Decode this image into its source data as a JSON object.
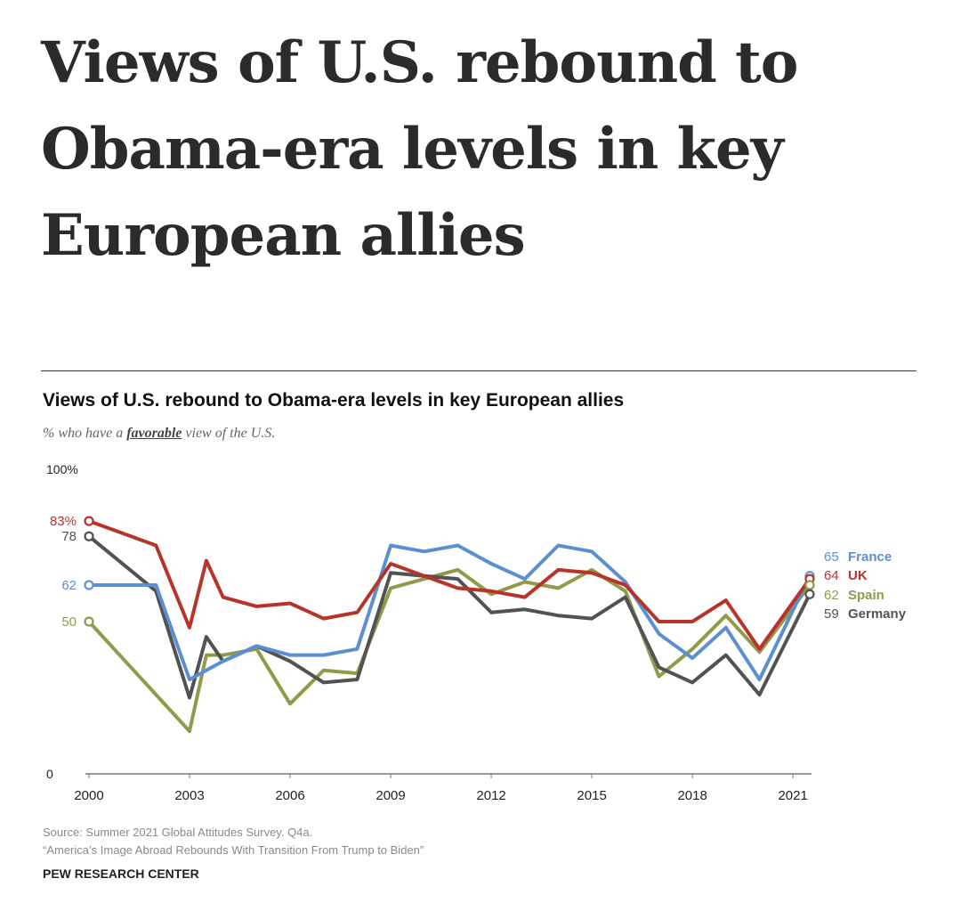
{
  "headline": "Views of U.S. rebound to Obama-era levels in key European allies",
  "chart_title": "Views of U.S. rebound to Obama-era levels in key European allies",
  "subtitle_before": "% who have a ",
  "subtitle_emphasis": "favorable",
  "subtitle_after": " view of the U.S.",
  "source_line_1": "Source: Summer 2021 Global Attitudes Survey. Q4a.",
  "source_line_2": "“America’s Image Abroad Rebounds With Transition From Trump to Biden”",
  "organization": "PEW RESEARCH CENTER",
  "chart_data": {
    "type": "line",
    "title": "Views of U.S. rebound to Obama-era levels in key European allies",
    "subtitle": "% who have a favorable view of the U.S.",
    "xlabel": "",
    "ylabel": "",
    "xlim": [
      2000,
      2021.5
    ],
    "ylim": [
      0,
      100
    ],
    "x_ticks": [
      2000,
      2003,
      2006,
      2009,
      2012,
      2015,
      2018,
      2021
    ],
    "y_tick_labels": [
      {
        "value": 100,
        "label": "100%"
      },
      {
        "value": 0,
        "label": "0"
      }
    ],
    "grid": false,
    "legend": "labels at right end of each line",
    "series": [
      {
        "name": "France",
        "color": "#5b8fd4",
        "start_label": "62",
        "end_label": "65",
        "points": [
          [
            2000,
            62
          ],
          [
            2002,
            62
          ],
          [
            2003,
            31
          ],
          [
            2004,
            37
          ],
          [
            2005,
            42
          ],
          [
            2006,
            39
          ],
          [
            2007,
            39
          ],
          [
            2008,
            41
          ],
          [
            2009,
            75
          ],
          [
            2010,
            73
          ],
          [
            2011,
            75
          ],
          [
            2012,
            69
          ],
          [
            2013,
            64
          ],
          [
            2014,
            75
          ],
          [
            2015,
            73
          ],
          [
            2016,
            63
          ],
          [
            2017,
            46
          ],
          [
            2018,
            38
          ],
          [
            2019,
            48
          ],
          [
            2020,
            31
          ],
          [
            2021.5,
            65
          ]
        ]
      },
      {
        "name": "UK",
        "color": "#b5352b",
        "start_label": "83%",
        "end_label": "64",
        "points": [
          [
            2000,
            83
          ],
          [
            2002,
            75
          ],
          [
            2003,
            48
          ],
          [
            2003.5,
            70
          ],
          [
            2004,
            58
          ],
          [
            2005,
            55
          ],
          [
            2006,
            56
          ],
          [
            2007,
            51
          ],
          [
            2008,
            53
          ],
          [
            2009,
            69
          ],
          [
            2010,
            65
          ],
          [
            2011,
            61
          ],
          [
            2012,
            60
          ],
          [
            2013,
            58
          ],
          [
            2014,
            67
          ],
          [
            2015,
            66
          ],
          [
            2016,
            62
          ],
          [
            2017,
            50
          ],
          [
            2018,
            50
          ],
          [
            2019,
            57
          ],
          [
            2020,
            41
          ],
          [
            2021.5,
            64
          ]
        ]
      },
      {
        "name": "Spain",
        "color": "#929a4a",
        "start_label": "50",
        "end_label": "62",
        "points": [
          [
            2000,
            50
          ],
          [
            2003,
            14
          ],
          [
            2003.5,
            39
          ],
          [
            2004,
            39
          ],
          [
            2005,
            41
          ],
          [
            2006,
            23
          ],
          [
            2007,
            34
          ],
          [
            2008,
            33
          ],
          [
            2009,
            61
          ],
          [
            2010,
            64
          ],
          [
            2011,
            67
          ],
          [
            2012,
            59
          ],
          [
            2013,
            63
          ],
          [
            2014,
            61
          ],
          [
            2015,
            67
          ],
          [
            2016,
            60
          ],
          [
            2017,
            32
          ],
          [
            2018,
            41
          ],
          [
            2019,
            52
          ],
          [
            2020,
            40
          ],
          [
            2021.5,
            62
          ]
        ]
      },
      {
        "name": "Germany",
        "color": "#525252",
        "start_label": "78",
        "end_label": "59",
        "points": [
          [
            2000,
            78
          ],
          [
            2002,
            60
          ],
          [
            2003,
            25
          ],
          [
            2003.5,
            45
          ],
          [
            2004,
            37
          ],
          [
            2005,
            42
          ],
          [
            2006,
            37
          ],
          [
            2007,
            30
          ],
          [
            2008,
            31
          ],
          [
            2009,
            66
          ],
          [
            2010,
            65
          ],
          [
            2011,
            64
          ],
          [
            2012,
            53
          ],
          [
            2013,
            54
          ],
          [
            2014,
            52
          ],
          [
            2015,
            51
          ],
          [
            2016,
            58
          ],
          [
            2017,
            35
          ],
          [
            2018,
            30
          ],
          [
            2019,
            39
          ],
          [
            2020,
            26
          ],
          [
            2021.5,
            59
          ]
        ]
      }
    ]
  }
}
